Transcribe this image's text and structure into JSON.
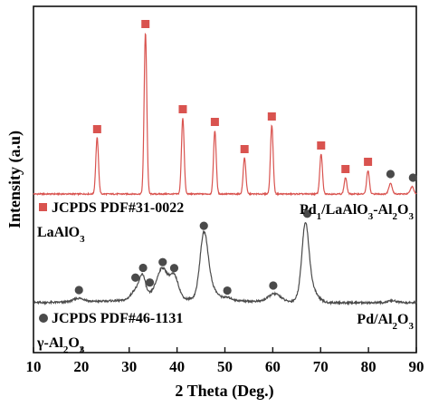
{
  "chart_data": {
    "type": "line",
    "xlabel": "2 Theta (Deg.)",
    "ylabel": "Intensity (a.u)",
    "xlim": [
      10,
      90
    ],
    "xticks": [
      10,
      20,
      30,
      40,
      50,
      60,
      70,
      80,
      90
    ],
    "yticks_shown": false,
    "series": [
      {
        "name": "Pd1/LaAlO3-Al2O3",
        "label_main": "Pd",
        "label_sub1": "1",
        "label_mid": "/LaAlO",
        "label_sub2": "3",
        "label_mid2": "-Al",
        "label_sub3": "2",
        "label_end": "O",
        "label_sub4": "3",
        "color": "#d9534f",
        "baseline": 214,
        "peaks": [
          {
            "x": 23.3,
            "h": 62,
            "w": 0.28
          },
          {
            "x": 33.4,
            "h": 178,
            "w": 0.28
          },
          {
            "x": 41.2,
            "h": 84,
            "w": 0.28
          },
          {
            "x": 47.9,
            "h": 70,
            "w": 0.28
          },
          {
            "x": 54.1,
            "h": 40,
            "w": 0.28
          },
          {
            "x": 59.8,
            "h": 76,
            "w": 0.28
          },
          {
            "x": 70.1,
            "h": 44,
            "w": 0.28
          },
          {
            "x": 75.2,
            "h": 18,
            "w": 0.28
          },
          {
            "x": 79.9,
            "h": 26,
            "w": 0.28
          },
          {
            "x": 84.6,
            "h": 12,
            "w": 0.35
          },
          {
            "x": 89.1,
            "h": 8,
            "w": 0.35
          }
        ]
      },
      {
        "name": "Pd/Al2O3",
        "label_main": "Pd/Al",
        "label_sub1": "2",
        "label_end": "O",
        "label_sub2": "3",
        "color": "#4a4a4a",
        "baseline": 334,
        "peaks": [
          {
            "x": 19.5,
            "h": 4,
            "w": 1.2
          },
          {
            "x": 31.5,
            "h": 12,
            "w": 1.0
          },
          {
            "x": 32.8,
            "h": 22,
            "w": 0.6
          },
          {
            "x": 34.5,
            "h": 5,
            "w": 1.0
          },
          {
            "x": 36.9,
            "h": 34,
            "w": 1.1
          },
          {
            "x": 39.4,
            "h": 25,
            "w": 0.9
          },
          {
            "x": 45.6,
            "h": 60,
            "w": 0.8
          },
          {
            "x": 46.5,
            "h": 18,
            "w": 1.4
          },
          {
            "x": 50.5,
            "h": 3,
            "w": 1.0
          },
          {
            "x": 60.4,
            "h": 9,
            "w": 1.3
          },
          {
            "x": 66.8,
            "h": 68,
            "w": 0.7
          },
          {
            "x": 67.4,
            "h": 22,
            "w": 1.4
          },
          {
            "x": 85.0,
            "h": 2,
            "w": 1.0
          }
        ]
      }
    ],
    "markers": {
      "laalo3": {
        "symbol": "square",
        "color": "#d9534f",
        "x": [
          23.3,
          33.4,
          41.2,
          47.9,
          54.1,
          59.8,
          70.1,
          75.2,
          79.9
        ]
      },
      "al2o3": {
        "symbol": "circle",
        "color": "#4a4a4a",
        "x": [
          19.5,
          31.3,
          32.9,
          34.3,
          37.0,
          39.4,
          45.6,
          50.5,
          60.1,
          67.2,
          84.6,
          89.3
        ]
      }
    },
    "legend": [
      {
        "symbol": "square",
        "color": "#d9534f",
        "text": "JCPDS PDF#31-0022",
        "text2_main": "LaAlO",
        "text2_sub": "3"
      },
      {
        "symbol": "circle",
        "color": "#4a4a4a",
        "text": "JCPDS PDF#46-1131",
        "text2_main": "γ-Al",
        "text2_sub": "2",
        "text2_end": "O",
        "text2_sub2": "3"
      }
    ]
  }
}
